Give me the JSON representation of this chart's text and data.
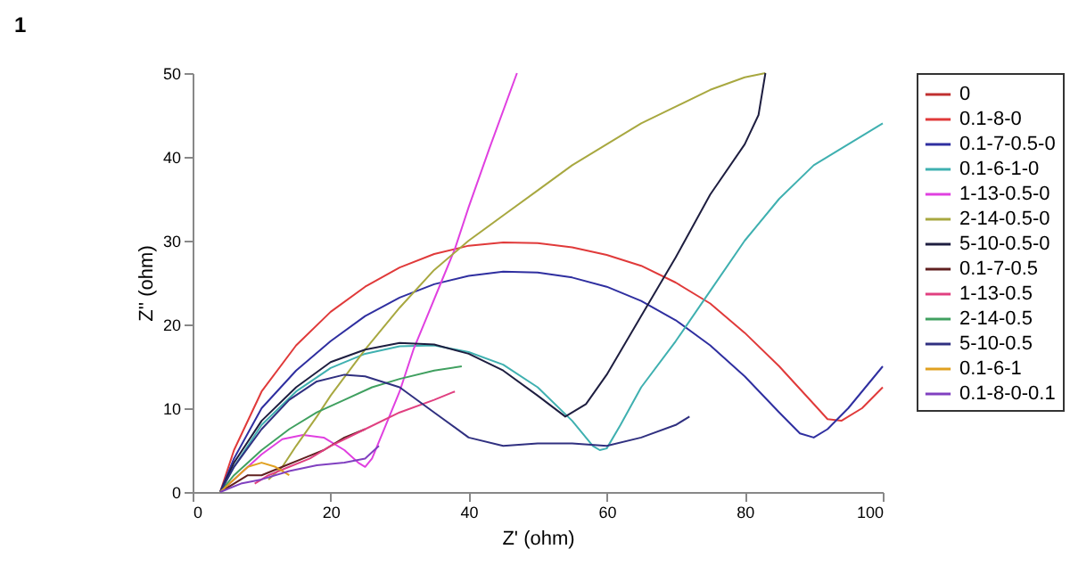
{
  "chart_data": {
    "type": "line",
    "xlabel": "Z' (ohm)",
    "ylabel": "Z'' (ohm)",
    "annotations": [
      "1"
    ],
    "xlim": [
      0,
      100
    ],
    "xticks": [
      0,
      20,
      40,
      60,
      80,
      100
    ],
    "ylim": [
      0,
      50
    ],
    "yticks": [
      0,
      10,
      20,
      30,
      40,
      50
    ],
    "grid": false,
    "legend": "right",
    "line_style": "solid",
    "marker": "none",
    "series": [
      {
        "name": "0",
        "color": "#c03030"
      },
      {
        "name": "0.1-8-0",
        "color": "#e03a3a",
        "x": [
          4,
          6,
          10,
          15,
          20,
          25,
          30,
          35,
          40,
          45,
          50,
          55,
          60,
          65,
          70,
          75,
          80,
          85,
          90,
          92,
          94,
          97,
          100
        ],
        "values": [
          0,
          5,
          12,
          17.5,
          21.5,
          24.5,
          26.8,
          28.4,
          29.4,
          29.8,
          29.7,
          29.2,
          28.3,
          27,
          25,
          22.5,
          19,
          15,
          10.5,
          8.7,
          8.5,
          10,
          12.5
        ]
      },
      {
        "name": "0.1-7-0.5-0",
        "color": "#2f2fa0",
        "x": [
          4,
          6,
          10,
          15,
          20,
          25,
          30,
          35,
          40,
          45,
          50,
          55,
          60,
          65,
          70,
          75,
          80,
          85,
          88,
          90,
          92,
          95,
          100
        ],
        "values": [
          0,
          4,
          10,
          14.5,
          18,
          21,
          23.2,
          24.8,
          25.8,
          26.3,
          26.2,
          25.6,
          24.5,
          22.8,
          20.5,
          17.5,
          13.8,
          9.5,
          7,
          6.5,
          7.5,
          10,
          15
        ]
      },
      {
        "name": "0.1-6-1-0",
        "color": "#3fb0b0",
        "x": [
          4,
          6,
          10,
          15,
          20,
          25,
          30,
          35,
          40,
          45,
          50,
          55,
          58,
          59,
          60,
          62,
          65,
          70,
          75,
          80,
          85,
          90,
          95,
          100
        ],
        "values": [
          0,
          3,
          8,
          12,
          14.8,
          16.5,
          17.4,
          17.5,
          16.7,
          15.2,
          12.5,
          8.5,
          5.5,
          5,
          5.2,
          8,
          12.5,
          18,
          24,
          30,
          35,
          39,
          41.5,
          44
        ]
      },
      {
        "name": "1-13-0.5-0",
        "color": "#e040e0",
        "x": [
          4,
          6,
          10,
          13,
          16,
          19,
          22,
          24,
          25,
          26,
          28,
          30,
          32,
          34,
          36,
          38,
          40,
          43,
          47
        ],
        "values": [
          0,
          1.5,
          4.5,
          6.3,
          6.8,
          6.5,
          5,
          3.5,
          3,
          4,
          8,
          12,
          17,
          21,
          25,
          29,
          34,
          41,
          50
        ]
      },
      {
        "name": "2-14-0.5-0",
        "color": "#a8a840",
        "x": [
          11,
          13,
          15,
          18,
          20,
          25,
          30,
          35,
          40,
          45,
          50,
          55,
          60,
          65,
          70,
          75,
          80,
          83
        ],
        "values": [
          1.5,
          3,
          5.5,
          9,
          11.5,
          17,
          22,
          26.5,
          30,
          33,
          36,
          39,
          41.5,
          44,
          46,
          48,
          49.5,
          50
        ]
      },
      {
        "name": "5-10-0.5-0",
        "color": "#1e1e40",
        "x": [
          4,
          6,
          10,
          15,
          20,
          25,
          30,
          35,
          40,
          45,
          50,
          54,
          57,
          60,
          65,
          70,
          75,
          80,
          82,
          83
        ],
        "values": [
          0,
          3.5,
          8.5,
          12.5,
          15.5,
          17,
          17.8,
          17.6,
          16.5,
          14.5,
          11.5,
          9,
          10.5,
          14,
          21,
          28,
          35.5,
          41.5,
          45,
          50
        ]
      },
      {
        "name": "0.1-7-0.5",
        "color": "#602020",
        "x": [
          4,
          6,
          8,
          10,
          13,
          16,
          19,
          22,
          25
        ],
        "values": [
          0,
          1,
          2,
          2,
          3,
          4,
          5,
          6.5,
          7.5
        ]
      },
      {
        "name": "1-13-0.5",
        "color": "#e04080",
        "x": [
          9,
          11,
          14,
          17,
          20,
          25,
          30,
          35,
          38
        ],
        "values": [
          1,
          2,
          3,
          4,
          5.5,
          7.5,
          9.5,
          11,
          12
        ]
      },
      {
        "name": "2-14-0.5",
        "color": "#40a060",
        "x": [
          4,
          6,
          10,
          14,
          18,
          22,
          26,
          30,
          35,
          39
        ],
        "values": [
          0,
          2,
          5,
          7.5,
          9.5,
          11,
          12.5,
          13.5,
          14.5,
          15
        ]
      },
      {
        "name": "5-10-0.5",
        "color": "#303080",
        "x": [
          4,
          6,
          10,
          14,
          18,
          22,
          25,
          30,
          35,
          40,
          45,
          50,
          55,
          60,
          65,
          70,
          72
        ],
        "values": [
          0,
          3,
          7.5,
          11,
          13.2,
          14,
          13.8,
          12.5,
          9.5,
          6.5,
          5.5,
          5.8,
          5.8,
          5.5,
          6.5,
          8,
          9
        ]
      },
      {
        "name": "0.1-6-1",
        "color": "#e0a020",
        "x": [
          4,
          6,
          8,
          10,
          12,
          14
        ],
        "values": [
          0,
          1.5,
          3,
          3.5,
          3,
          2
        ]
      },
      {
        "name": "0.1-8-0-0.1",
        "color": "#8040c0",
        "x": [
          4,
          7,
          10,
          14,
          18,
          22,
          25,
          27
        ],
        "values": [
          0,
          1,
          1.5,
          2.5,
          3.2,
          3.5,
          4,
          5.5
        ]
      }
    ]
  }
}
